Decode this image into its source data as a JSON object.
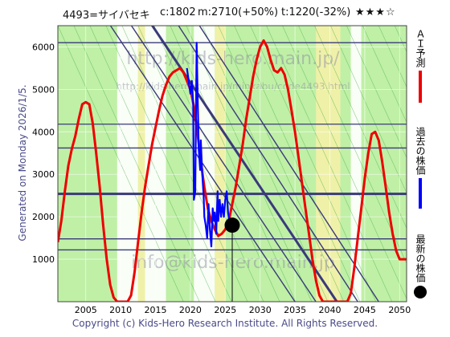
{
  "header": {
    "title": "4493=サイバセキ",
    "current": "c:1802",
    "max": "m:2710(+50%)",
    "target": "t:1220(-32%)",
    "rating": "★★★☆"
  },
  "generated": "Generated on Monday 2026/1/5.",
  "copyright": "Copyright (c) Kids-Hero Research Institute. All Rights Reserved.",
  "legend": {
    "ai": "ＡＩ予測",
    "past": "過去の株価",
    "latest": "最新の株価"
  },
  "watermarks": [
    "http://kids-hero.main.jp/",
    "http://kids-hero.main.jp/minkabu/code4493.html",
    "info@kids-hero.main.jp"
  ],
  "colors": {
    "ai_line": "#ee0000",
    "past_line": "#0000ff",
    "latest_marker": "#000000",
    "hline": "#3a3a7a",
    "band_green": "#bff0a6",
    "band_yellow": "#f4f1a8",
    "band_white": "#ffffff"
  },
  "chart_data": {
    "type": "line",
    "xlim": [
      2001,
      2051
    ],
    "ylim": [
      0,
      6500
    ],
    "xticks": [
      2005,
      2010,
      2015,
      2020,
      2025,
      2030,
      2035,
      2040,
      2045,
      2050
    ],
    "yticks": [
      1000,
      2000,
      3000,
      4000,
      5000,
      6000
    ],
    "horizontal_lines": [
      6100,
      3620,
      2540,
      1480,
      1220,
      4180
    ],
    "diagonal_lines": [
      {
        "x0": 2000,
        "y0": 8600,
        "x1": 2035,
        "y1": 0
      },
      {
        "x0": 2003,
        "y0": 8600,
        "x1": 2038,
        "y1": 0
      },
      {
        "x0": 2006,
        "y0": 8600,
        "x1": 2041,
        "y1": 0
      },
      {
        "x0": 2010,
        "y0": 8600,
        "x1": 2044,
        "y1": 0
      },
      {
        "x0": 2013,
        "y0": 8600,
        "x1": 2047,
        "y1": 0
      }
    ],
    "latest": {
      "x": 2026.0,
      "y": 1802
    },
    "series": [
      {
        "name": "ＡＩ予測",
        "x": [
          2001.0,
          2001.5,
          2002.0,
          2002.5,
          2003.0,
          2003.5,
          2004.0,
          2004.5,
          2005.0,
          2005.5,
          2006.0,
          2006.5,
          2007.0,
          2007.5,
          2008.0,
          2008.5,
          2009.0,
          2009.5,
          2010.0,
          2010.5,
          2011.0,
          2011.5,
          2012.0,
          2012.5,
          2013.0,
          2013.5,
          2014.0,
          2014.5,
          2015.0,
          2015.5,
          2016.0,
          2016.5,
          2017.0,
          2017.5,
          2018.0,
          2018.5,
          2019.0,
          2019.5,
          2020.0,
          2020.5,
          2021.0,
          2021.5,
          2022.0,
          2022.5,
          2023.0,
          2023.5,
          2024.0,
          2024.5,
          2025.0,
          2025.5,
          2026.0,
          2026.5,
          2027.0,
          2027.5,
          2028.0,
          2028.5,
          2029.0,
          2029.5,
          2030.0,
          2030.5,
          2031.0,
          2031.5,
          2032.0,
          2032.5,
          2033.0,
          2033.5,
          2034.0,
          2034.5,
          2035.0,
          2035.5,
          2036.0,
          2036.5,
          2037.0,
          2037.5,
          2038.0,
          2038.5,
          2039.0,
          2039.5,
          2040.0,
          2041.0,
          2042.0,
          2042.5,
          2043.0,
          2043.5,
          2044.0,
          2044.5,
          2045.0,
          2045.5,
          2046.0,
          2046.5,
          2047.0,
          2047.5,
          2048.0,
          2048.5,
          2049.0,
          2049.5,
          2050.0,
          2050.5,
          2051.0
        ],
        "values": [
          1400,
          1900,
          2600,
          3200,
          3600,
          3900,
          4300,
          4650,
          4700,
          4650,
          4200,
          3500,
          2700,
          1800,
          1000,
          400,
          100,
          0,
          0,
          0,
          0,
          150,
          700,
          1400,
          2100,
          2700,
          3200,
          3700,
          4100,
          4500,
          4850,
          5100,
          5300,
          5400,
          5450,
          5500,
          5400,
          5200,
          5000,
          4600,
          4000,
          3300,
          2700,
          2200,
          1900,
          1700,
          1550,
          1600,
          1700,
          1900,
          2300,
          2700,
          3200,
          3700,
          4300,
          4800,
          5300,
          5700,
          6000,
          6150,
          6000,
          5700,
          5450,
          5400,
          5500,
          5350,
          5000,
          4500,
          4000,
          3400,
          2800,
          2200,
          1600,
          1000,
          500,
          150,
          0,
          0,
          0,
          0,
          0,
          0,
          200,
          800,
          1500,
          2200,
          2900,
          3500,
          3950,
          4000,
          3800,
          3300,
          2700,
          2100,
          1600,
          1200,
          1000,
          1000,
          1000
        ]
      },
      {
        "name": "過去の株価",
        "x": [
          2019.5,
          2020.0,
          2020.2,
          2020.4,
          2020.5,
          2020.7,
          2020.9,
          2021.0,
          2021.2,
          2021.4,
          2021.5,
          2021.7,
          2021.9,
          2022.0,
          2022.2,
          2022.4,
          2022.6,
          2022.8,
          2023.0,
          2023.2,
          2023.4,
          2023.5,
          2023.7,
          2023.9,
          2024.0,
          2024.2,
          2024.4,
          2024.6,
          2024.8,
          2025.0,
          2025.2,
          2025.4,
          2025.6,
          2025.8
        ],
        "values": [
          5500,
          4900,
          5200,
          4700,
          2400,
          2600,
          6100,
          5200,
          3600,
          3100,
          3800,
          3000,
          2500,
          2000,
          1800,
          1500,
          2300,
          1700,
          1300,
          2200,
          1900,
          2100,
          1600,
          2600,
          1900,
          2400,
          2000,
          2300,
          2000,
          2400,
          2600,
          2100,
          1900,
          1850
        ]
      }
    ]
  }
}
